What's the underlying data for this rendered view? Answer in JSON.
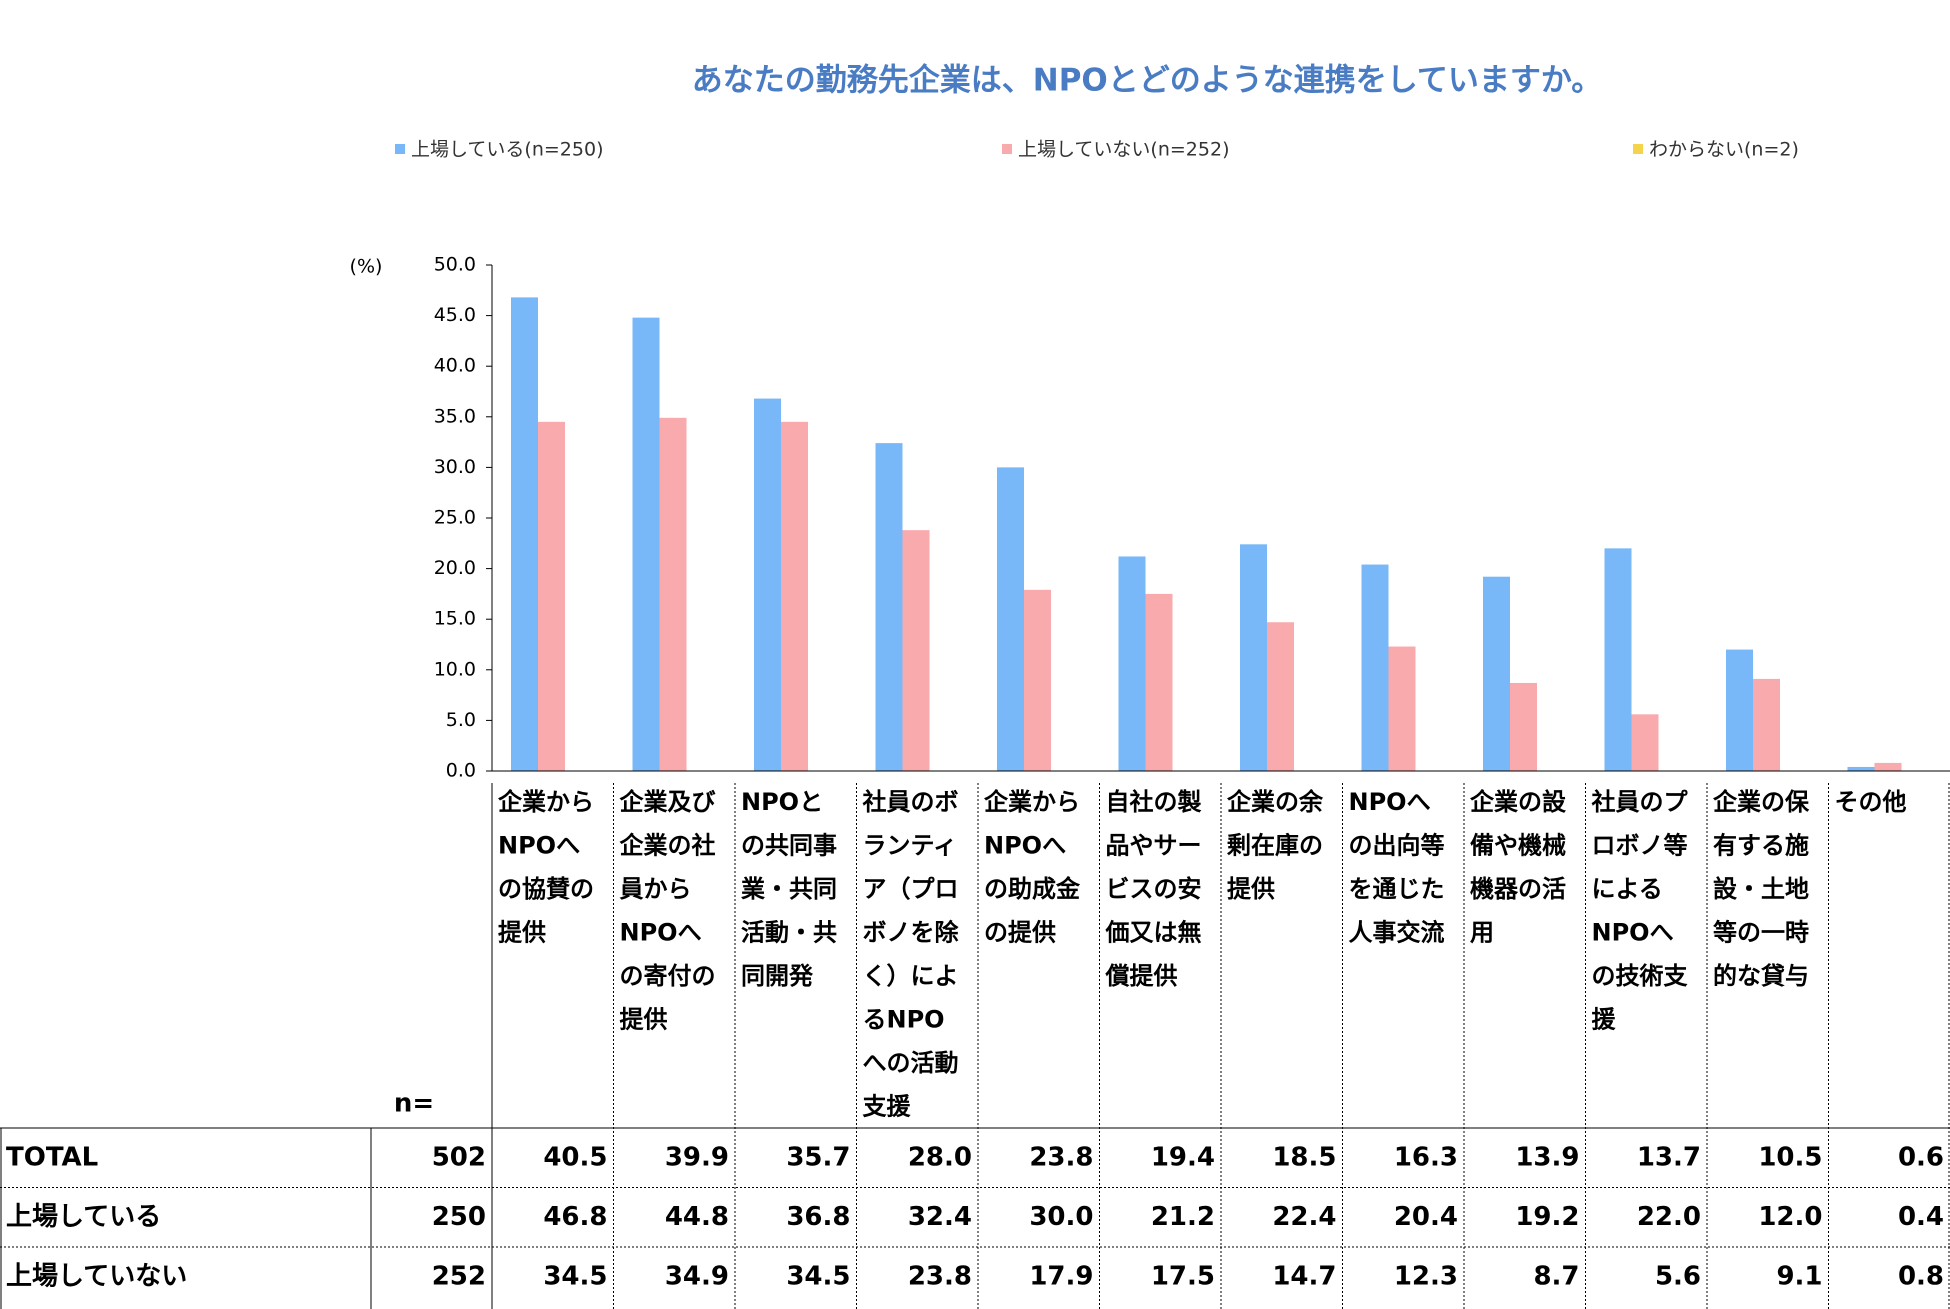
{
  "chart_data": {
    "type": "bar",
    "title": "あなたの勤務先企業は、NPOとどのような連携をしていますか。",
    "y_unit": "(%)",
    "categories": [
      "企業から\nNPOへ\nの協賛の\n提供",
      "企業及び\n企業の社\n員から\nNPOへ\nの寄付の\n提供",
      "NPOと\nの共同事\n業・共同\n活動・共\n同開発",
      "社員のボ\nランティ\nア（プロ\nボノを除\nく）によ\nるNPO\nへの活動\n支援",
      "企業から\nNPOへ\nの助成金\nの提供",
      "自社の製\n品やサー\nビスの安\n価又は無\n償提供",
      "企業の余\n剰在庫の\n提供",
      "NPOへ\nの出向等\nを通じた\n人事交流",
      "企業の設\n備や機械\n機器の活\n用",
      "社員のプ\nロボノ等\nによる\nNPOへ\nの技術支\n援",
      "企業の保\n有する施\n設・土地\n等の一時\n的な貸与",
      "その他"
    ],
    "series": [
      {
        "name": "上場している(n=250)",
        "color": "#79b8f8",
        "values": [
          46.8,
          44.8,
          36.8,
          32.4,
          30.0,
          21.2,
          22.4,
          20.4,
          19.2,
          22.0,
          12.0,
          0.4
        ],
        "value_labels": [
          "46.8",
          "44.8",
          "36.8",
          "32.4",
          "30.0",
          "21.2",
          "22.4",
          "20.4",
          "19.2",
          "22.0",
          "12.0",
          "0.4"
        ]
      },
      {
        "name": "上場していない(n=252)",
        "color": "#f9aaad",
        "values": [
          34.5,
          34.9,
          34.5,
          23.8,
          17.9,
          17.5,
          14.7,
          12.3,
          8.7,
          5.6,
          9.1,
          0.8
        ],
        "value_labels": [
          "34.5",
          "34.9",
          "34.5",
          "23.8",
          "17.9",
          "17.5",
          "14.7",
          "12.3",
          "8.7",
          "5.6",
          "9.1",
          "0.8"
        ]
      },
      {
        "name": "わからない(n=2)",
        "color": "#f5d34a",
        "values": [
          null,
          null,
          null,
          null,
          null,
          null,
          null,
          null,
          null,
          null,
          null,
          null
        ]
      }
    ],
    "ylim": [
      0,
      50
    ],
    "yticks": [
      {
        "value": 0,
        "label": "0.0"
      },
      {
        "value": 5,
        "label": "5.0"
      },
      {
        "value": 10,
        "label": "10.0"
      },
      {
        "value": 15,
        "label": "15.0"
      },
      {
        "value": 20,
        "label": "20.0"
      },
      {
        "value": 25,
        "label": "25.0"
      },
      {
        "value": 30,
        "label": "30.0"
      },
      {
        "value": 35,
        "label": "35.0"
      },
      {
        "value": 40,
        "label": "40.0"
      },
      {
        "value": 45,
        "label": "45.0"
      },
      {
        "value": 50,
        "label": "50.0"
      }
    ],
    "grid": false,
    "legend": "top",
    "table": {
      "n_label": "n=",
      "rows": [
        {
          "label": "TOTAL",
          "n": 502,
          "values": [
            "40.5",
            "39.9",
            "35.7",
            "28.0",
            "23.8",
            "19.4",
            "18.5",
            "16.3",
            "13.9",
            "13.7",
            "10.5",
            "0.6"
          ]
        },
        {
          "label": "上場している",
          "n": 250,
          "series": 0
        },
        {
          "label": "上場していない",
          "n": 252,
          "series": 1
        }
      ]
    }
  }
}
